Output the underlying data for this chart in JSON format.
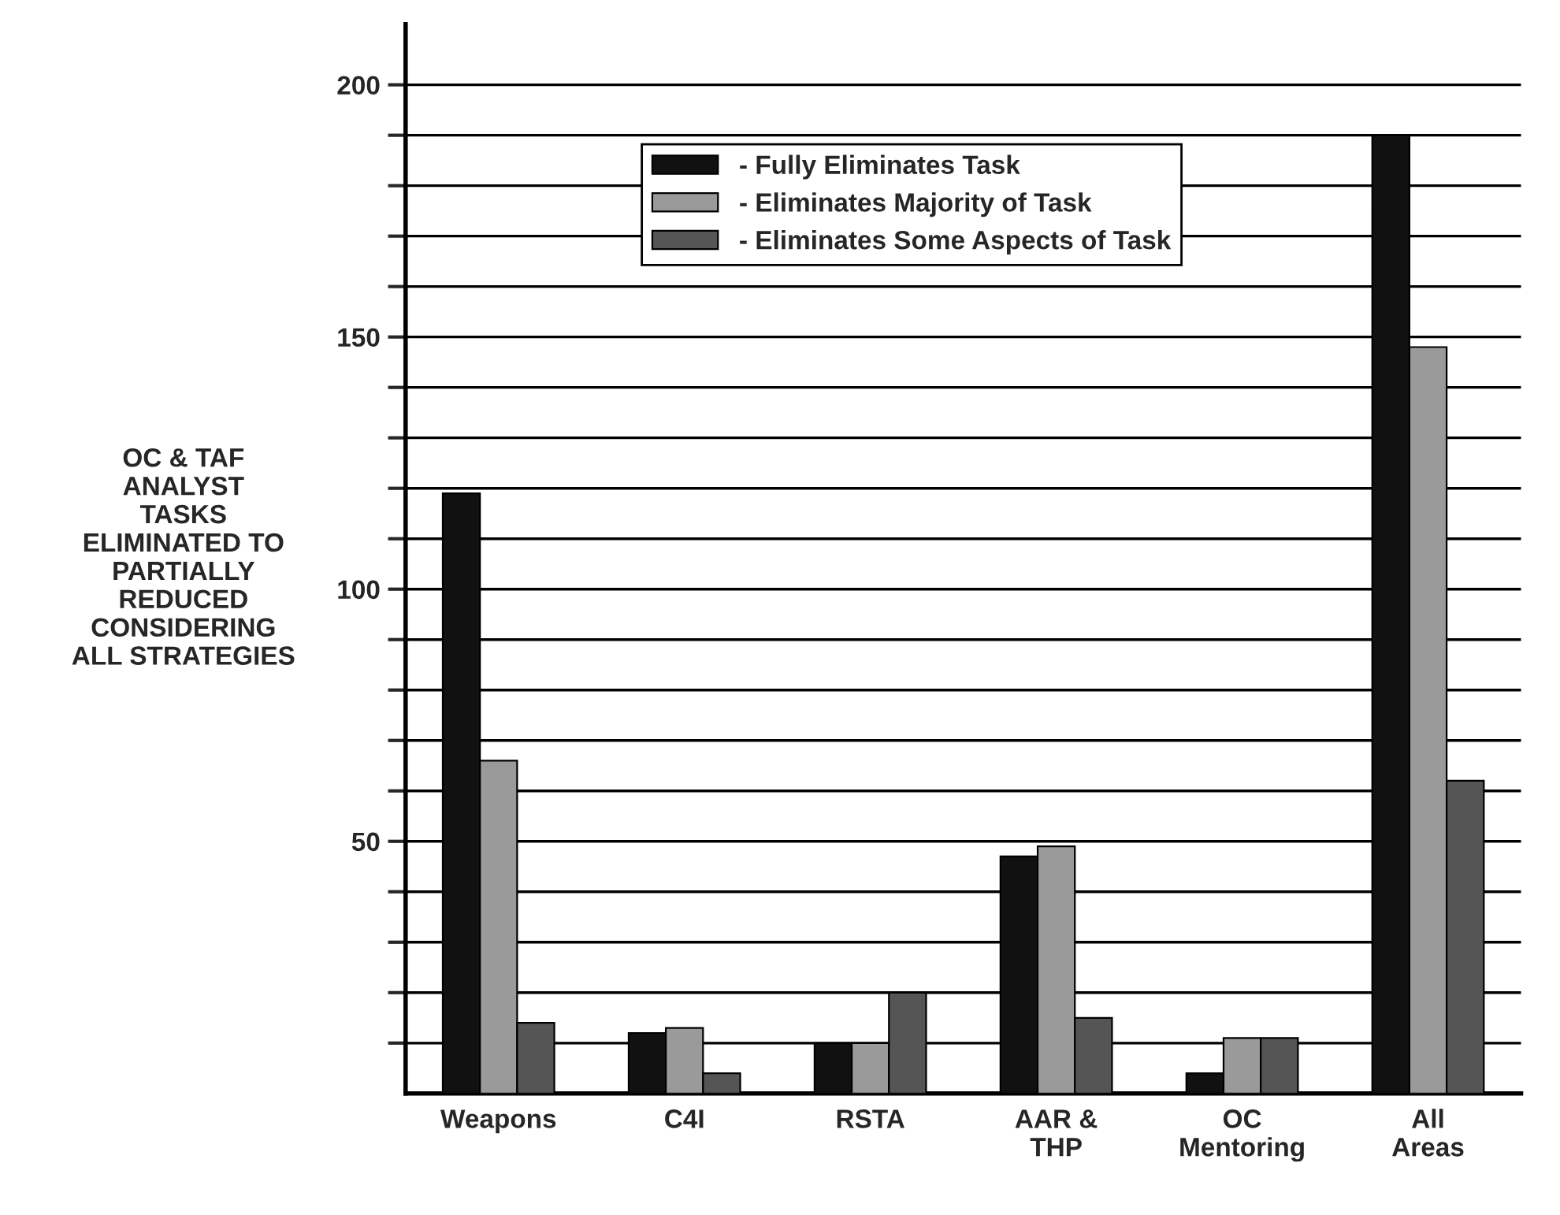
{
  "chart_data": {
    "type": "bar",
    "ylabel": "OC & TAF\nANALYST\nTASKS\nELIMINATED TO\nPARTIALLY\nREDUCED\nCONSIDERING\nALL STRATEGIES",
    "categories": [
      "Weapons",
      "C4I",
      "RSTA",
      "AAR &\nTHP",
      "OC\nMentoring",
      "All\nAreas"
    ],
    "series": [
      {
        "name": "- Fully Eliminates Task",
        "color": "#111111",
        "values": [
          119,
          12,
          10,
          47,
          4,
          190
        ]
      },
      {
        "name": "- Eliminates Majority of Task",
        "color": "#9a9a9a",
        "values": [
          66,
          13,
          10,
          49,
          11,
          148
        ]
      },
      {
        "name": "- Eliminates Some Aspects of Task",
        "color": "#555555",
        "values": [
          14,
          4,
          20,
          15,
          11,
          62
        ]
      }
    ],
    "ylim": [
      0,
      212
    ],
    "yticks": [
      {
        "value": 10,
        "label": null
      },
      {
        "value": 20,
        "label": null
      },
      {
        "value": 30,
        "label": null
      },
      {
        "value": 40,
        "label": null
      },
      50,
      {
        "value": 60,
        "label": null
      },
      {
        "value": 70,
        "label": null
      },
      {
        "value": 80,
        "label": null
      },
      {
        "value": 90,
        "label": null
      },
      100,
      {
        "value": 110,
        "label": null
      },
      {
        "value": 120,
        "label": null
      },
      {
        "value": 130,
        "label": null
      },
      {
        "value": 140,
        "label": null
      },
      150,
      {
        "value": 160,
        "label": null
      },
      {
        "value": 170,
        "label": null
      },
      {
        "value": 180,
        "label": null
      },
      {
        "value": 190,
        "label": null
      },
      200
    ],
    "grid": "y",
    "legend": "top left"
  }
}
